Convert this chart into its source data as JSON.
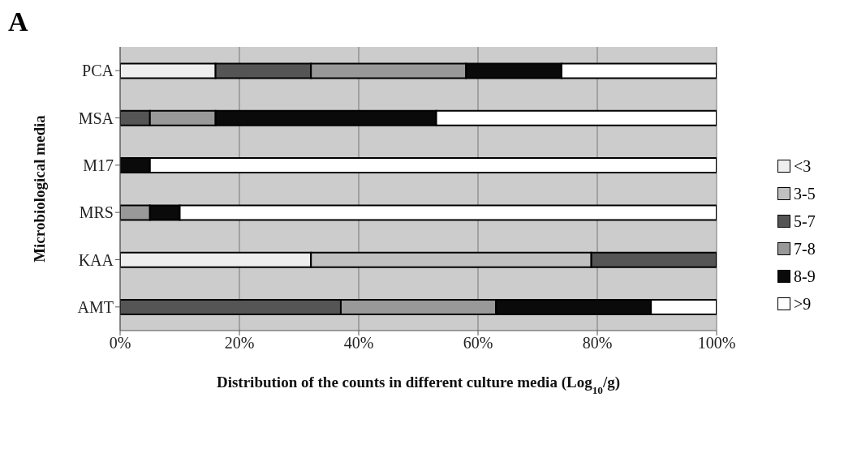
{
  "chart_data": {
    "type": "bar",
    "orientation": "horizontal",
    "stacked": true,
    "title": "A",
    "xlabel": "Distribution of the counts in different culture media (Log$_{10}$/g)",
    "ylabel": "Microbiological media",
    "categories": [
      "PCA",
      "MSA",
      "M17",
      "MRS",
      "KAA",
      "AMT"
    ],
    "series": [
      {
        "name": "<3",
        "color": "#eeeeee",
        "values": [
          16,
          0,
          0,
          0,
          32,
          0
        ]
      },
      {
        "name": "3-5",
        "color": "#c0c0c0",
        "values": [
          0,
          0,
          0,
          0,
          47,
          0
        ]
      },
      {
        "name": "5-7",
        "color": "#555555",
        "values": [
          16,
          5,
          0,
          0,
          21,
          37
        ]
      },
      {
        "name": "7-8",
        "color": "#999999",
        "values": [
          26,
          11,
          0,
          5,
          0,
          26
        ]
      },
      {
        "name": "8-9",
        "color": "#0a0a0a",
        "values": [
          16,
          37,
          5,
          5,
          0,
          26
        ]
      },
      {
        "name": ">9",
        "color": "#ffffff",
        "values": [
          26,
          47,
          95,
          90,
          0,
          11
        ]
      }
    ],
    "xlim": [
      0,
      100
    ],
    "xticks": [
      {
        "value": 0,
        "label": "0%"
      },
      {
        "value": 20,
        "label": "20%"
      },
      {
        "value": 40,
        "label": "40%"
      },
      {
        "value": 60,
        "label": "60%"
      },
      {
        "value": 80,
        "label": "80%"
      },
      {
        "value": 100,
        "label": "100%"
      }
    ],
    "grid": "x",
    "legend": "right"
  }
}
